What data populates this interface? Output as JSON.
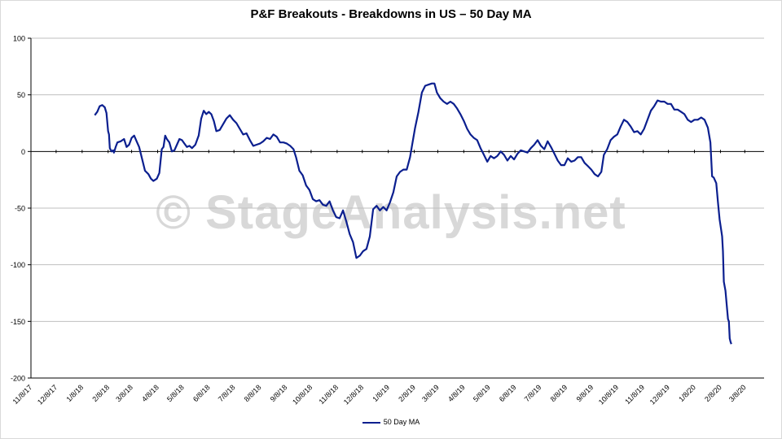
{
  "watermark": "© StageAnalysis.net",
  "colors": {
    "series": "#0b1f8f",
    "grid": "#bfbfbf",
    "zero_line": "#000000"
  },
  "chart_data": {
    "type": "line",
    "title": "P&F Breakouts - Breakdowns in US – 50 Day MA",
    "xlabel": "",
    "ylabel": "",
    "ylim": [
      -200,
      100
    ],
    "yticks": [
      100,
      50,
      0,
      -50,
      -100,
      -150,
      -200
    ],
    "xlim": [
      "2017-11-08",
      "2020-03-31"
    ],
    "xticks": [
      "11/8/17",
      "12/8/17",
      "1/8/18",
      "2/8/18",
      "3/8/18",
      "4/8/18",
      "5/8/18",
      "6/8/18",
      "7/8/18",
      "8/8/18",
      "9/8/18",
      "10/8/18",
      "11/8/18",
      "12/8/18",
      "1/8/19",
      "2/8/19",
      "3/8/19",
      "4/8/19",
      "5/8/19",
      "6/8/19",
      "7/8/19",
      "8/8/19",
      "9/8/19",
      "10/8/19",
      "11/8/19",
      "12/8/19",
      "1/8/20",
      "2/8/20",
      "3/8/20"
    ],
    "grid": true,
    "legend_position": "bottom",
    "series": [
      {
        "name": "50 Day MA",
        "points": [
          [
            "2018-01-23",
            32
          ],
          [
            "2018-01-26",
            35
          ],
          [
            "2018-01-29",
            40
          ],
          [
            "2018-02-01",
            41
          ],
          [
            "2018-02-04",
            39
          ],
          [
            "2018-02-06",
            34
          ],
          [
            "2018-02-07",
            26
          ],
          [
            "2018-02-08",
            18
          ],
          [
            "2018-02-09",
            15
          ],
          [
            "2018-02-10",
            3
          ],
          [
            "2018-02-12",
            0
          ],
          [
            "2018-02-14",
            1
          ],
          [
            "2018-02-15",
            -1
          ],
          [
            "2018-02-17",
            4
          ],
          [
            "2018-02-19",
            8
          ],
          [
            "2018-02-23",
            9
          ],
          [
            "2018-02-27",
            11
          ],
          [
            "2018-03-02",
            4
          ],
          [
            "2018-03-05",
            6
          ],
          [
            "2018-03-08",
            12
          ],
          [
            "2018-03-11",
            14
          ],
          [
            "2018-03-14",
            9
          ],
          [
            "2018-03-17",
            4
          ],
          [
            "2018-03-20",
            -5
          ],
          [
            "2018-03-24",
            -17
          ],
          [
            "2018-03-28",
            -20
          ],
          [
            "2018-03-31",
            -24
          ],
          [
            "2018-04-03",
            -26
          ],
          [
            "2018-04-07",
            -24
          ],
          [
            "2018-04-10",
            -19
          ],
          [
            "2018-04-13",
            2
          ],
          [
            "2018-04-15",
            4
          ],
          [
            "2018-04-17",
            14
          ],
          [
            "2018-04-19",
            11
          ],
          [
            "2018-04-22",
            8
          ],
          [
            "2018-04-25",
            0
          ],
          [
            "2018-04-28",
            1
          ],
          [
            "2018-05-01",
            6
          ],
          [
            "2018-05-04",
            11
          ],
          [
            "2018-05-07",
            10
          ],
          [
            "2018-05-10",
            7
          ],
          [
            "2018-05-13",
            4
          ],
          [
            "2018-05-16",
            5
          ],
          [
            "2018-05-19",
            3
          ],
          [
            "2018-05-23",
            6
          ],
          [
            "2018-05-27",
            14
          ],
          [
            "2018-05-30",
            29
          ],
          [
            "2018-06-02",
            36
          ],
          [
            "2018-06-05",
            33
          ],
          [
            "2018-06-08",
            35
          ],
          [
            "2018-06-11",
            33
          ],
          [
            "2018-06-14",
            27
          ],
          [
            "2018-06-17",
            18
          ],
          [
            "2018-06-21",
            19
          ],
          [
            "2018-06-25",
            24
          ],
          [
            "2018-06-29",
            29
          ],
          [
            "2018-07-03",
            32
          ],
          [
            "2018-07-07",
            28
          ],
          [
            "2018-07-11",
            25
          ],
          [
            "2018-07-15",
            20
          ],
          [
            "2018-07-19",
            15
          ],
          [
            "2018-07-23",
            16
          ],
          [
            "2018-07-27",
            10
          ],
          [
            "2018-07-31",
            5
          ],
          [
            "2018-08-04",
            6
          ],
          [
            "2018-08-08",
            7
          ],
          [
            "2018-08-12",
            9
          ],
          [
            "2018-08-16",
            12
          ],
          [
            "2018-08-20",
            11
          ],
          [
            "2018-08-24",
            15
          ],
          [
            "2018-08-28",
            13
          ],
          [
            "2018-09-01",
            8
          ],
          [
            "2018-09-05",
            8
          ],
          [
            "2018-09-09",
            7
          ],
          [
            "2018-09-13",
            5
          ],
          [
            "2018-09-17",
            2
          ],
          [
            "2018-09-20",
            -5
          ],
          [
            "2018-09-24",
            -17
          ],
          [
            "2018-09-28",
            -21
          ],
          [
            "2018-10-02",
            -30
          ],
          [
            "2018-10-06",
            -34
          ],
          [
            "2018-10-10",
            -42
          ],
          [
            "2018-10-14",
            -44
          ],
          [
            "2018-10-18",
            -43
          ],
          [
            "2018-10-22",
            -47
          ],
          [
            "2018-10-26",
            -48
          ],
          [
            "2018-10-30",
            -44
          ],
          [
            "2018-11-03",
            -52
          ],
          [
            "2018-11-07",
            -58
          ],
          [
            "2018-11-11",
            -59
          ],
          [
            "2018-11-15",
            -52
          ],
          [
            "2018-11-19",
            -62
          ],
          [
            "2018-11-23",
            -73
          ],
          [
            "2018-11-27",
            -80
          ],
          [
            "2018-12-01",
            -94
          ],
          [
            "2018-12-05",
            -92
          ],
          [
            "2018-12-09",
            -88
          ],
          [
            "2018-12-13",
            -86
          ],
          [
            "2018-12-17",
            -75
          ],
          [
            "2018-12-21",
            -51
          ],
          [
            "2018-12-25",
            -48
          ],
          [
            "2018-12-29",
            -52
          ],
          [
            "2019-01-02",
            -49
          ],
          [
            "2019-01-06",
            -52
          ],
          [
            "2019-01-10",
            -45
          ],
          [
            "2019-01-14",
            -36
          ],
          [
            "2019-01-18",
            -22
          ],
          [
            "2019-01-22",
            -18
          ],
          [
            "2019-01-26",
            -16
          ],
          [
            "2019-01-30",
            -16
          ],
          [
            "2019-02-03",
            -5
          ],
          [
            "2019-02-05",
            4
          ],
          [
            "2019-02-09",
            21
          ],
          [
            "2019-02-13",
            35
          ],
          [
            "2019-02-17",
            52
          ],
          [
            "2019-02-21",
            58
          ],
          [
            "2019-02-25",
            59
          ],
          [
            "2019-03-01",
            60
          ],
          [
            "2019-03-04",
            60
          ],
          [
            "2019-03-07",
            52
          ],
          [
            "2019-03-11",
            47
          ],
          [
            "2019-03-15",
            44
          ],
          [
            "2019-03-19",
            42
          ],
          [
            "2019-03-23",
            44
          ],
          [
            "2019-03-27",
            42
          ],
          [
            "2019-03-31",
            38
          ],
          [
            "2019-04-04",
            33
          ],
          [
            "2019-04-08",
            27
          ],
          [
            "2019-04-12",
            20
          ],
          [
            "2019-04-16",
            15
          ],
          [
            "2019-04-20",
            12
          ],
          [
            "2019-04-24",
            10
          ],
          [
            "2019-04-28",
            3
          ],
          [
            "2019-05-02",
            -3
          ],
          [
            "2019-05-06",
            -9
          ],
          [
            "2019-05-10",
            -4
          ],
          [
            "2019-05-14",
            -6
          ],
          [
            "2019-05-18",
            -4
          ],
          [
            "2019-05-22",
            0
          ],
          [
            "2019-05-26",
            -3
          ],
          [
            "2019-05-30",
            -8
          ],
          [
            "2019-06-03",
            -4
          ],
          [
            "2019-06-07",
            -7
          ],
          [
            "2019-06-11",
            -2
          ],
          [
            "2019-06-15",
            1
          ],
          [
            "2019-06-19",
            0
          ],
          [
            "2019-06-23",
            -1
          ],
          [
            "2019-06-27",
            3
          ],
          [
            "2019-07-01",
            6
          ],
          [
            "2019-07-05",
            10
          ],
          [
            "2019-07-09",
            5
          ],
          [
            "2019-07-13",
            2
          ],
          [
            "2019-07-17",
            9
          ],
          [
            "2019-07-21",
            4
          ],
          [
            "2019-07-25",
            -2
          ],
          [
            "2019-07-29",
            -8
          ],
          [
            "2019-08-02",
            -12
          ],
          [
            "2019-08-06",
            -12
          ],
          [
            "2019-08-10",
            -6
          ],
          [
            "2019-08-14",
            -9
          ],
          [
            "2019-08-18",
            -8
          ],
          [
            "2019-08-22",
            -5
          ],
          [
            "2019-08-26",
            -5
          ],
          [
            "2019-08-30",
            -10
          ],
          [
            "2019-09-03",
            -13
          ],
          [
            "2019-09-07",
            -16
          ],
          [
            "2019-09-11",
            -20
          ],
          [
            "2019-09-15",
            -22
          ],
          [
            "2019-09-19",
            -18
          ],
          [
            "2019-09-22",
            -3
          ],
          [
            "2019-09-26",
            2
          ],
          [
            "2019-09-30",
            10
          ],
          [
            "2019-10-04",
            13
          ],
          [
            "2019-10-08",
            15
          ],
          [
            "2019-10-12",
            22
          ],
          [
            "2019-10-16",
            28
          ],
          [
            "2019-10-20",
            26
          ],
          [
            "2019-10-24",
            22
          ],
          [
            "2019-10-28",
            17
          ],
          [
            "2019-11-01",
            18
          ],
          [
            "2019-11-05",
            15
          ],
          [
            "2019-11-09",
            20
          ],
          [
            "2019-11-13",
            28
          ],
          [
            "2019-11-17",
            36
          ],
          [
            "2019-11-21",
            40
          ],
          [
            "2019-11-25",
            45
          ],
          [
            "2019-11-29",
            44
          ],
          [
            "2019-12-03",
            44
          ],
          [
            "2019-12-07",
            42
          ],
          [
            "2019-12-11",
            42
          ],
          [
            "2019-12-15",
            37
          ],
          [
            "2019-12-19",
            37
          ],
          [
            "2019-12-23",
            35
          ],
          [
            "2019-12-27",
            33
          ],
          [
            "2019-12-31",
            28
          ],
          [
            "2020-01-04",
            26
          ],
          [
            "2020-01-08",
            28
          ],
          [
            "2020-01-12",
            28
          ],
          [
            "2020-01-16",
            30
          ],
          [
            "2020-01-20",
            28
          ],
          [
            "2020-01-24",
            21
          ],
          [
            "2020-01-27",
            8
          ],
          [
            "2020-01-29",
            -22
          ],
          [
            "2020-01-31",
            -23
          ],
          [
            "2020-02-03",
            -28
          ],
          [
            "2020-02-05",
            -45
          ],
          [
            "2020-02-07",
            -60
          ],
          [
            "2020-02-09",
            -70
          ],
          [
            "2020-02-10",
            -75
          ],
          [
            "2020-02-11",
            -88
          ],
          [
            "2020-02-12",
            -115
          ],
          [
            "2020-02-14",
            -123
          ],
          [
            "2020-02-16",
            -140
          ],
          [
            "2020-02-17",
            -148
          ],
          [
            "2020-02-18",
            -150
          ],
          [
            "2020-02-19",
            -165
          ],
          [
            "2020-02-20",
            -168
          ],
          [
            "2020-02-21",
            -170
          ]
        ]
      }
    ]
  }
}
